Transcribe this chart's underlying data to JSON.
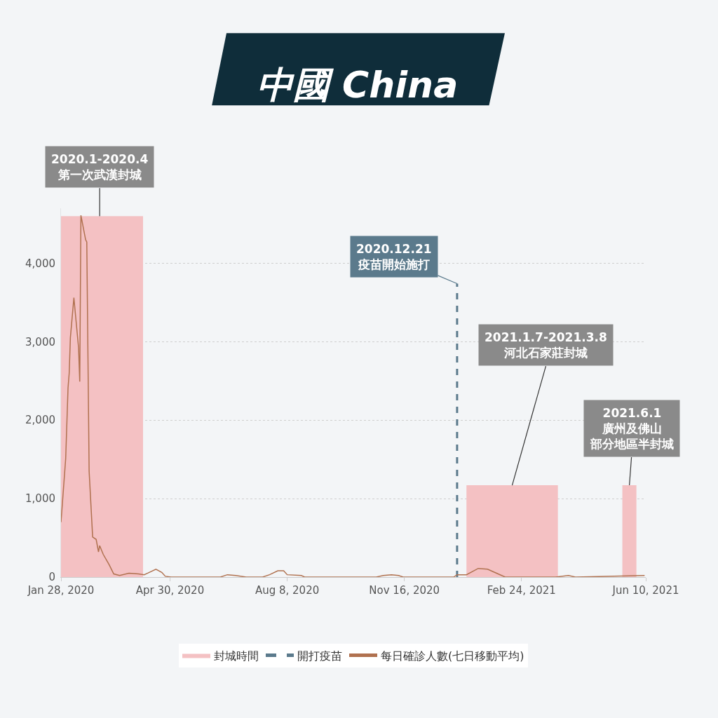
{
  "chart_data": {
    "type": "line",
    "title": "中國 China",
    "xlim": [
      "2020-01-28",
      "2021-06-10"
    ],
    "xticks": [
      {
        "value": "2020-01-28",
        "label": "Jan 28, 2020"
      },
      {
        "value": "2020-04-30",
        "label": "Apr 30, 2020"
      },
      {
        "value": "2020-08-08",
        "label": "Aug 8, 2020"
      },
      {
        "value": "2020-11-16",
        "label": "Nov 16, 2020"
      },
      {
        "value": "2021-02-24",
        "label": "Feb 24, 2021"
      },
      {
        "value": "2021-06-10",
        "label": "Jun 10, 2021"
      }
    ],
    "ylim": [
      0,
      4700
    ],
    "yticks": [
      0,
      {
        "value": 1000,
        "label": "1,000"
      },
      {
        "value": 2000,
        "label": "2,000"
      },
      {
        "value": 3000,
        "label": "3,000"
      },
      {
        "value": 4000,
        "label": "4,000"
      }
    ],
    "grid": "y",
    "legend": "bottom",
    "series": [
      {
        "name": "封城時間",
        "type": "area",
        "color": "#f4c1c3",
        "x": [
          "2020-01-28",
          "2020-01-28",
          "2020-04-07",
          "2020-04-07",
          "2021-01-08",
          "2021-01-08",
          "2021-03-27",
          "2021-03-27",
          "2021-05-21",
          "2021-05-21",
          "2021-06-02",
          "2021-06-02"
        ],
        "values": [
          0,
          4600,
          4600,
          0,
          0,
          1170,
          1170,
          0,
          0,
          1170,
          1170,
          0
        ]
      },
      {
        "name": "開打疫苗",
        "type": "line",
        "line_style": "dashed",
        "color": "#5b7a8c",
        "x": [
          "2020-12-31",
          "2020-12-31"
        ],
        "values": [
          0,
          3740
        ]
      },
      {
        "name": "每日確診人數(七日移動平均)",
        "line_style": "solid",
        "color": "#b0714f",
        "x": [
          "2020-01-28",
          "2020-02-01",
          "2020-02-03",
          "2020-02-04",
          "2020-02-05",
          "2020-02-08",
          "2020-02-12",
          "2020-02-13",
          "2020-02-14",
          "2020-02-18",
          "2020-02-19",
          "2020-02-21",
          "2020-02-24",
          "2020-02-27",
          "2020-02-29",
          "2020-03-01",
          "2020-03-04",
          "2020-03-09",
          "2020-03-13",
          "2020-03-18",
          "2020-03-26",
          "2020-04-03",
          "2020-04-08",
          "2020-04-11",
          "2020-04-18",
          "2020-04-23",
          "2020-04-26",
          "2020-05-01",
          "2020-06-12",
          "2020-06-18",
          "2020-06-25",
          "2020-07-04",
          "2020-07-18",
          "2020-07-24",
          "2020-07-31",
          "2020-08-05",
          "2020-08-08",
          "2020-08-20",
          "2020-08-23",
          "2020-10-23",
          "2020-10-29",
          "2020-11-05",
          "2020-11-11",
          "2020-11-15",
          "2020-12-28",
          "2020-12-31",
          "2021-01-08",
          "2021-01-18",
          "2021-01-26",
          "2021-02-04",
          "2021-02-10",
          "2021-03-25",
          "2021-04-05",
          "2021-04-11",
          "2021-06-09"
        ],
        "values": [
          700,
          1510,
          2410,
          2600,
          3050,
          3560,
          2920,
          2490,
          4610,
          4300,
          4270,
          1350,
          510,
          480,
          320,
          400,
          290,
          160,
          40,
          20,
          50,
          40,
          30,
          50,
          100,
          60,
          10,
          0,
          0,
          30,
          20,
          0,
          0,
          30,
          80,
          80,
          30,
          20,
          0,
          0,
          20,
          30,
          20,
          0,
          0,
          30,
          30,
          110,
          100,
          40,
          0,
          0,
          20,
          0,
          20
        ]
      }
    ],
    "annotations": [
      {
        "text": "2020.1-2020.4\n第一次武漢封城",
        "x": "2020-03-01",
        "y": 4600
      },
      {
        "text": "2020.12.21\n疫苗開始施打",
        "x": "2020-12-31",
        "y": 3740
      },
      {
        "text": "2021.1.7-2021.3.8\n河北石家莊封城",
        "x": "2021-02-16",
        "y": 1170
      },
      {
        "text": "2021.6.1\n廣州及佛山部分地區半封城",
        "x": "2021-05-27",
        "y": 1170
      }
    ]
  }
}
